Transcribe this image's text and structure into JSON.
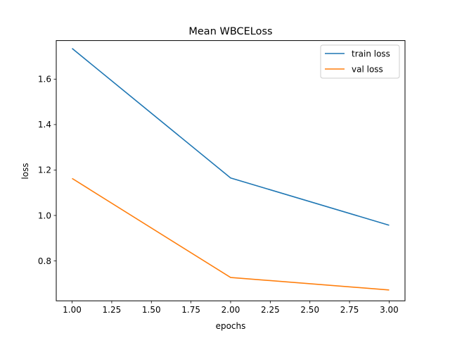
{
  "chart_data": {
    "type": "line",
    "title": "Mean WBCELoss",
    "xlabel": "epochs",
    "ylabel": "loss",
    "xlim": [
      0.9,
      3.1
    ],
    "ylim": [
      0.6243,
      1.7697
    ],
    "x_ticks": [
      1.0,
      1.25,
      1.5,
      1.75,
      2.0,
      2.25,
      2.5,
      2.75,
      3.0
    ],
    "x_tick_labels": [
      "1.00",
      "1.25",
      "1.50",
      "1.75",
      "2.00",
      "2.25",
      "2.50",
      "2.75",
      "3.00"
    ],
    "y_ticks": [
      0.8,
      1.0,
      1.2,
      1.4,
      1.6
    ],
    "y_tick_labels": [
      "0.8",
      "1.0",
      "1.2",
      "1.4",
      "1.6"
    ],
    "grid": false,
    "legend_position": "top-right",
    "series": [
      {
        "name": "train loss",
        "color": "#1f77b4",
        "x": [
          1,
          2,
          3
        ],
        "values": [
          1.735,
          1.165,
          0.957
        ]
      },
      {
        "name": "val loss",
        "color": "#ff7f0e",
        "x": [
          1,
          2,
          3
        ],
        "values": [
          1.163,
          0.727,
          0.672
        ]
      }
    ]
  }
}
